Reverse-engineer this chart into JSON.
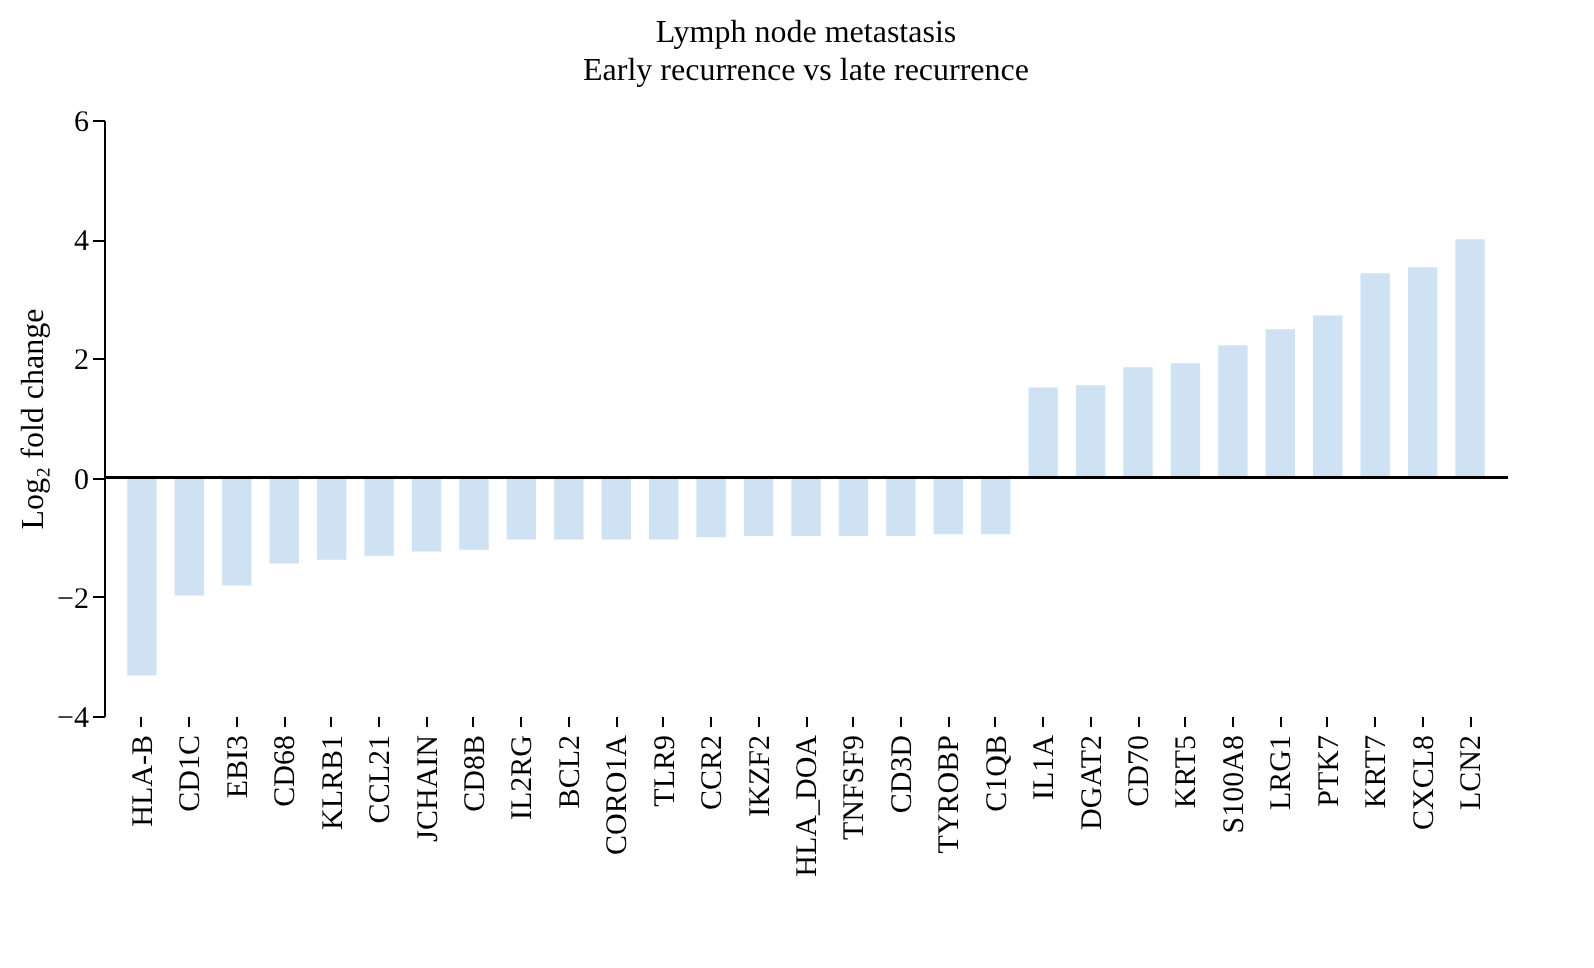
{
  "chart_data": {
    "type": "bar",
    "title": "Lymph node metastasis",
    "subtitle": "Early recurrence vs late recurrence",
    "ylabel": "Log₂ fold change",
    "categories": [
      "HLA-B",
      "CD1C",
      "EBI3",
      "CD68",
      "KLRB1",
      "CCL21",
      "JCHAIN",
      "CD8B",
      "IL2RG",
      "BCL2",
      "CORO1A",
      "TLR9",
      "CCR2",
      "IKZF2",
      "HLA_DOA",
      "TNFSF9",
      "CD3D",
      "TYROBP",
      "C1QB",
      "IL1A",
      "DGAT2",
      "CD70",
      "KRT5",
      "S100A8",
      "LRG1",
      "PTK7",
      "KRT7",
      "CXCL8",
      "LCN2"
    ],
    "values": [
      -3.32,
      -1.98,
      -1.81,
      -1.44,
      -1.38,
      -1.31,
      -1.24,
      -1.21,
      -1.04,
      -1.04,
      -1.04,
      -1.04,
      -1.0,
      -0.98,
      -0.98,
      -0.98,
      -0.98,
      -0.95,
      -0.95,
      1.51,
      1.55,
      1.85,
      1.92,
      2.22,
      2.49,
      2.72,
      3.43,
      3.53,
      4.0
    ],
    "color": "#cfe2f3",
    "ylim": [
      -4,
      6
    ],
    "yticks": [
      -4,
      -2,
      0,
      2,
      4,
      6
    ]
  }
}
